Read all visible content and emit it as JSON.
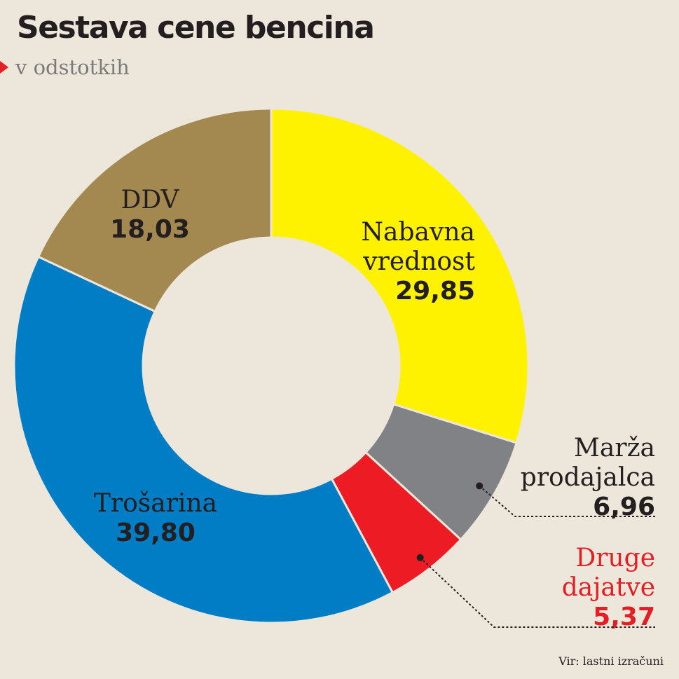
{
  "title": "Sestava cene bencina",
  "subtitle": "v odstotkih",
  "source": "Vir: lastni izračuni",
  "chart_data": {
    "type": "pie",
    "donut": true,
    "title": "Sestava cene bencina",
    "subtitle": "v odstotkih",
    "slices": [
      {
        "label": [
          "Nabavna",
          "vrednost"
        ],
        "value": 29.85,
        "display_value": "29,85",
        "color": "#fff200"
      },
      {
        "label": [
          "Marža",
          "prodajalca"
        ],
        "value": 6.96,
        "display_value": "6,96",
        "color": "#808285"
      },
      {
        "label": [
          "Druge",
          "dajatve"
        ],
        "value": 5.37,
        "display_value": "5,37",
        "color": "#ed1c24"
      },
      {
        "label": [
          "Trošarina"
        ],
        "value": 39.8,
        "display_value": "39,80",
        "color": "#007dc5"
      },
      {
        "label": [
          "DDV"
        ],
        "value": 18.03,
        "display_value": "18,03",
        "color": "#a3884f"
      }
    ]
  }
}
